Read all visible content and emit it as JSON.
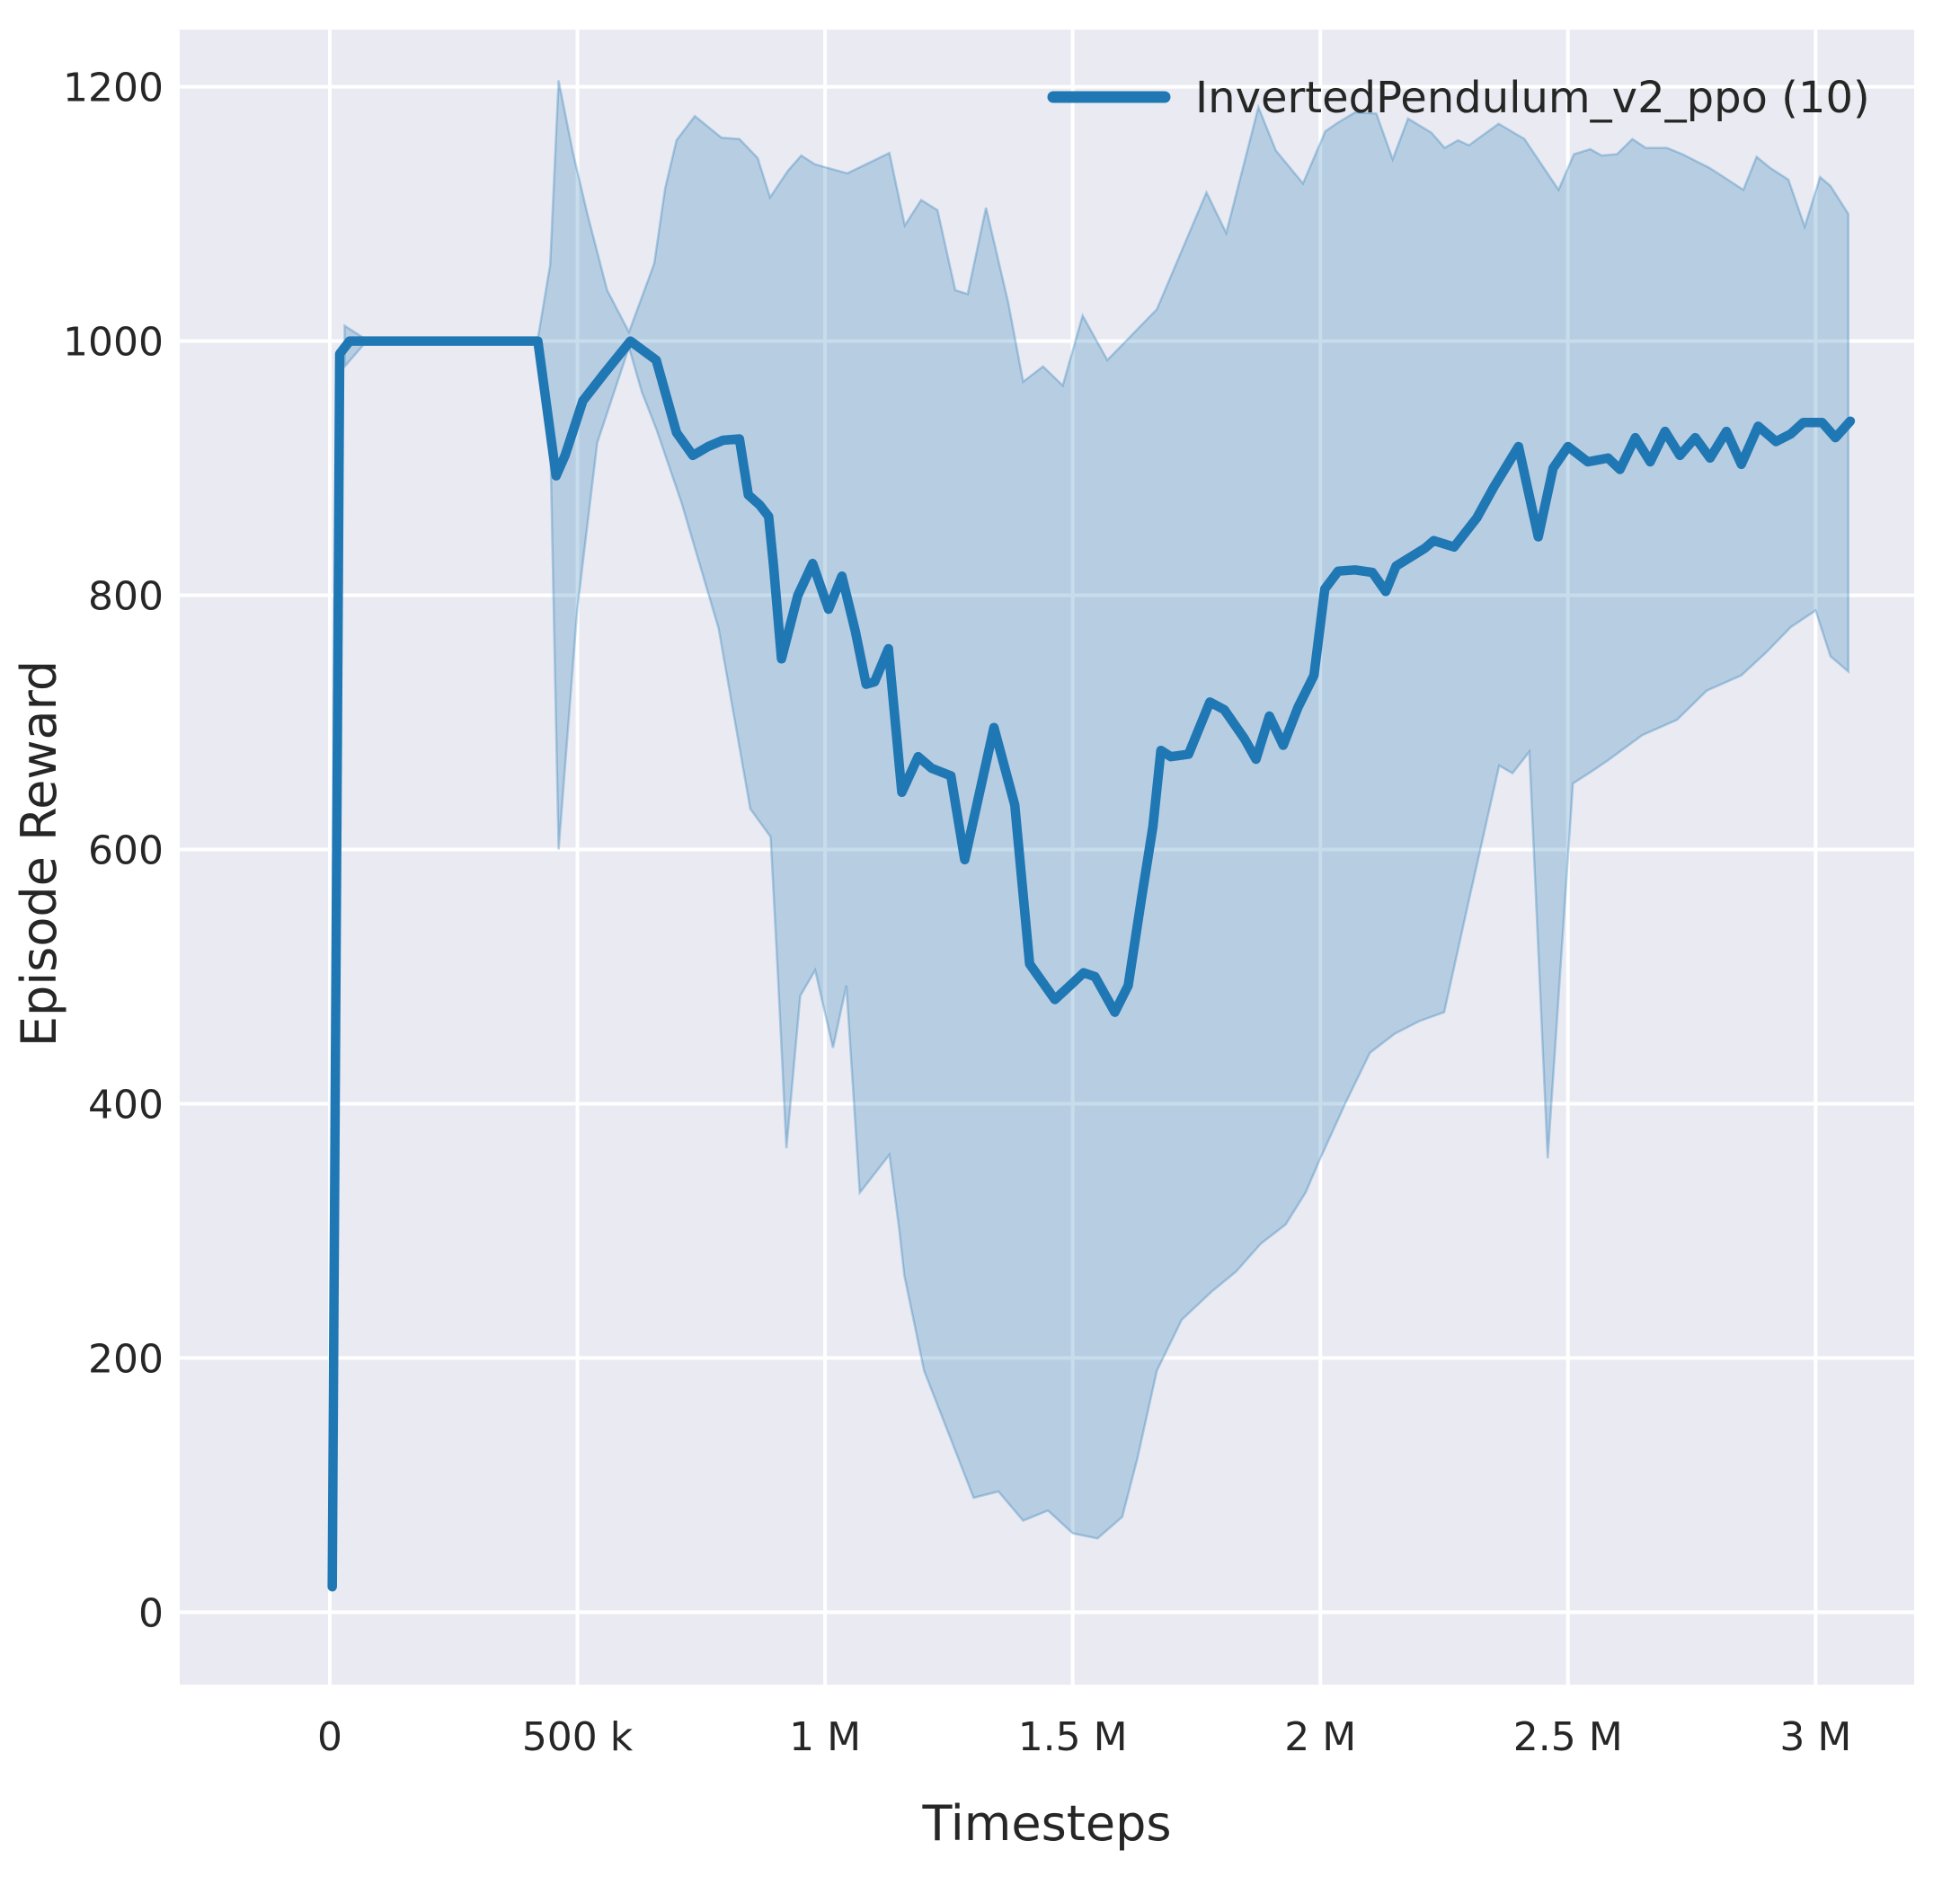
{
  "figure": {
    "xlabel": "Timesteps",
    "ylabel": "Episode Reward",
    "legend": {
      "label": "InvertedPendulum_v2_ppo (10)"
    }
  },
  "colors": {
    "plot_background": "#eaeaf2",
    "figure_background": "#ffffff",
    "grid": "#ffffff",
    "line": "#1f77b4",
    "band_fill": "rgba(31,119,180,0.25)",
    "band_edge": "rgba(31,119,180,0.30)",
    "text": "#262626"
  },
  "chart_data": {
    "type": "line",
    "title": "",
    "xlabel": "Timesteps",
    "ylabel": "Episode Reward",
    "legend_entries": [
      "InvertedPendulum_v2_ppo (10)"
    ],
    "legend_position": "upper right",
    "grid": true,
    "xlim": [
      -0.303,
      3.199
    ],
    "ylim": [
      -57,
      1245
    ],
    "x_unit": "millions of timesteps",
    "x_ticks": {
      "values": [
        0,
        0.5,
        1,
        1.5,
        2,
        2.5,
        3
      ],
      "labels": [
        "0",
        "500 k",
        "1 M",
        "1.5 M",
        "2 M",
        "2.5 M",
        "3 M"
      ]
    },
    "y_ticks": {
      "values": [
        0,
        200,
        400,
        600,
        800,
        1000,
        1200
      ],
      "labels": [
        "0",
        "200",
        "400",
        "600",
        "800",
        "1000",
        "1200"
      ]
    },
    "series": [
      {
        "name": "InvertedPendulum_v2_ppo (10) mean episode reward",
        "points": [
          [
            0.005,
            20
          ],
          [
            0.02,
            990
          ],
          [
            0.04,
            1000
          ],
          [
            0.1,
            1000
          ],
          [
            0.2,
            1000
          ],
          [
            0.3,
            1000
          ],
          [
            0.42,
            1000
          ],
          [
            0.457,
            894
          ],
          [
            0.475,
            910
          ],
          [
            0.511,
            953
          ],
          [
            0.555,
            975
          ],
          [
            0.607,
            1000
          ],
          [
            0.659,
            985
          ],
          [
            0.7,
            928
          ],
          [
            0.733,
            910
          ],
          [
            0.764,
            917
          ],
          [
            0.794,
            922
          ],
          [
            0.827,
            923
          ],
          [
            0.845,
            879
          ],
          [
            0.868,
            871
          ],
          [
            0.886,
            862
          ],
          [
            0.896,
            823
          ],
          [
            0.912,
            750
          ],
          [
            0.945,
            800
          ],
          [
            0.975,
            825
          ],
          [
            1.007,
            789
          ],
          [
            1.034,
            815
          ],
          [
            1.061,
            772
          ],
          [
            1.083,
            730
          ],
          [
            1.1,
            732
          ],
          [
            1.128,
            758
          ],
          [
            1.155,
            645
          ],
          [
            1.188,
            673
          ],
          [
            1.215,
            664
          ],
          [
            1.254,
            658
          ],
          [
            1.282,
            592
          ],
          [
            1.341,
            696
          ],
          [
            1.383,
            635
          ],
          [
            1.413,
            510
          ],
          [
            1.464,
            482
          ],
          [
            1.5,
            495
          ],
          [
            1.522,
            503
          ],
          [
            1.545,
            500
          ],
          [
            1.585,
            472
          ],
          [
            1.612,
            493
          ],
          [
            1.639,
            562
          ],
          [
            1.662,
            618
          ],
          [
            1.678,
            678
          ],
          [
            1.698,
            673
          ],
          [
            1.734,
            675
          ],
          [
            1.777,
            716
          ],
          [
            1.806,
            710
          ],
          [
            1.847,
            687
          ],
          [
            1.87,
            671
          ],
          [
            1.897,
            705
          ],
          [
            1.925,
            682
          ],
          [
            1.955,
            712
          ],
          [
            1.987,
            737
          ],
          [
            2.009,
            805
          ],
          [
            2.036,
            819
          ],
          [
            2.07,
            820
          ],
          [
            2.105,
            818
          ],
          [
            2.132,
            803
          ],
          [
            2.153,
            823
          ],
          [
            2.211,
            837
          ],
          [
            2.229,
            843
          ],
          [
            2.27,
            838
          ],
          [
            2.316,
            861
          ],
          [
            2.35,
            885
          ],
          [
            2.4,
            917
          ],
          [
            2.44,
            846
          ],
          [
            2.47,
            900
          ],
          [
            2.5,
            917
          ],
          [
            2.54,
            905
          ],
          [
            2.581,
            908
          ],
          [
            2.605,
            899
          ],
          [
            2.636,
            924
          ],
          [
            2.666,
            905
          ],
          [
            2.696,
            929
          ],
          [
            2.726,
            910
          ],
          [
            2.757,
            924
          ],
          [
            2.787,
            908
          ],
          [
            2.82,
            929
          ],
          [
            2.85,
            903
          ],
          [
            2.884,
            933
          ],
          [
            2.92,
            921
          ],
          [
            2.95,
            927
          ],
          [
            2.975,
            936
          ],
          [
            3.013,
            936
          ],
          [
            3.04,
            924
          ],
          [
            3.07,
            937
          ]
        ],
        "band_upper": [
          [
            0.03,
            1012
          ],
          [
            0.07,
            1002
          ],
          [
            0.42,
            1002
          ],
          [
            0.445,
            1060
          ],
          [
            0.462,
            1205
          ],
          [
            0.49,
            1150
          ],
          [
            0.52,
            1100
          ],
          [
            0.56,
            1040
          ],
          [
            0.604,
            1007
          ],
          [
            0.655,
            1061
          ],
          [
            0.677,
            1120
          ],
          [
            0.7,
            1158
          ],
          [
            0.737,
            1177
          ],
          [
            0.791,
            1160
          ],
          [
            0.827,
            1159
          ],
          [
            0.864,
            1144
          ],
          [
            0.889,
            1113
          ],
          [
            0.925,
            1134
          ],
          [
            0.952,
            1146
          ],
          [
            0.98,
            1139
          ],
          [
            1.045,
            1132
          ],
          [
            1.13,
            1148
          ],
          [
            1.161,
            1091
          ],
          [
            1.194,
            1111
          ],
          [
            1.227,
            1103
          ],
          [
            1.263,
            1040
          ],
          [
            1.288,
            1037
          ],
          [
            1.325,
            1105
          ],
          [
            1.37,
            1030
          ],
          [
            1.4,
            968
          ],
          [
            1.44,
            980
          ],
          [
            1.48,
            965
          ],
          [
            1.52,
            1020
          ],
          [
            1.57,
            985
          ],
          [
            1.62,
            1005
          ],
          [
            1.67,
            1025
          ],
          [
            1.77,
            1117
          ],
          [
            1.81,
            1085
          ],
          [
            1.875,
            1184
          ],
          [
            1.91,
            1150
          ],
          [
            1.965,
            1124
          ],
          [
            2.01,
            1165
          ],
          [
            2.032,
            1171
          ],
          [
            2.07,
            1180
          ],
          [
            2.113,
            1179
          ],
          [
            2.146,
            1143
          ],
          [
            2.177,
            1175
          ],
          [
            2.224,
            1164
          ],
          [
            2.251,
            1152
          ],
          [
            2.278,
            1158
          ],
          [
            2.3,
            1154
          ],
          [
            2.36,
            1171
          ],
          [
            2.412,
            1159
          ],
          [
            2.481,
            1119
          ],
          [
            2.512,
            1147
          ],
          [
            2.545,
            1151
          ],
          [
            2.568,
            1146
          ],
          [
            2.599,
            1147
          ],
          [
            2.63,
            1159
          ],
          [
            2.657,
            1152
          ],
          [
            2.7,
            1152
          ],
          [
            2.731,
            1147
          ],
          [
            2.787,
            1136
          ],
          [
            2.854,
            1119
          ],
          [
            2.881,
            1145
          ],
          [
            2.909,
            1136
          ],
          [
            2.945,
            1127
          ],
          [
            2.978,
            1090
          ],
          [
            3.009,
            1129
          ],
          [
            3.03,
            1122
          ],
          [
            3.066,
            1100
          ]
        ],
        "band_lower": [
          [
            0.03,
            980
          ],
          [
            0.07,
            998
          ],
          [
            0.42,
            998
          ],
          [
            0.445,
            925
          ],
          [
            0.462,
            600
          ],
          [
            0.5,
            790
          ],
          [
            0.54,
            920
          ],
          [
            0.604,
            995
          ],
          [
            0.63,
            960
          ],
          [
            0.66,
            930
          ],
          [
            0.71,
            873
          ],
          [
            0.785,
            774
          ],
          [
            0.849,
            632
          ],
          [
            0.89,
            610
          ],
          [
            0.905,
            500
          ],
          [
            0.922,
            365
          ],
          [
            0.95,
            485
          ],
          [
            0.98,
            505
          ],
          [
            1.016,
            444
          ],
          [
            1.043,
            493
          ],
          [
            1.07,
            330
          ],
          [
            1.13,
            360
          ],
          [
            1.15,
            300
          ],
          [
            1.16,
            265
          ],
          [
            1.2,
            190
          ],
          [
            1.25,
            140
          ],
          [
            1.3,
            90
          ],
          [
            1.35,
            95
          ],
          [
            1.4,
            72
          ],
          [
            1.45,
            80
          ],
          [
            1.5,
            62
          ],
          [
            1.55,
            58
          ],
          [
            1.6,
            75
          ],
          [
            1.63,
            120
          ],
          [
            1.67,
            190
          ],
          [
            1.72,
            230
          ],
          [
            1.78,
            252
          ],
          [
            1.83,
            268
          ],
          [
            1.88,
            290
          ],
          [
            1.93,
            305
          ],
          [
            1.97,
            330
          ],
          [
            2.0,
            357
          ],
          [
            2.05,
            400
          ],
          [
            2.1,
            440
          ],
          [
            2.15,
            455
          ],
          [
            2.2,
            465
          ],
          [
            2.25,
            472
          ],
          [
            2.3,
            560
          ],
          [
            2.361,
            666
          ],
          [
            2.388,
            660
          ],
          [
            2.422,
            677
          ],
          [
            2.459,
            357
          ],
          [
            2.51,
            652
          ],
          [
            2.55,
            662
          ],
          [
            2.58,
            670
          ],
          [
            2.65,
            690
          ],
          [
            2.72,
            702
          ],
          [
            2.78,
            725
          ],
          [
            2.85,
            737
          ],
          [
            2.9,
            755
          ],
          [
            2.95,
            775
          ],
          [
            3.0,
            788
          ],
          [
            3.03,
            752
          ],
          [
            3.066,
            740
          ]
        ]
      }
    ]
  }
}
